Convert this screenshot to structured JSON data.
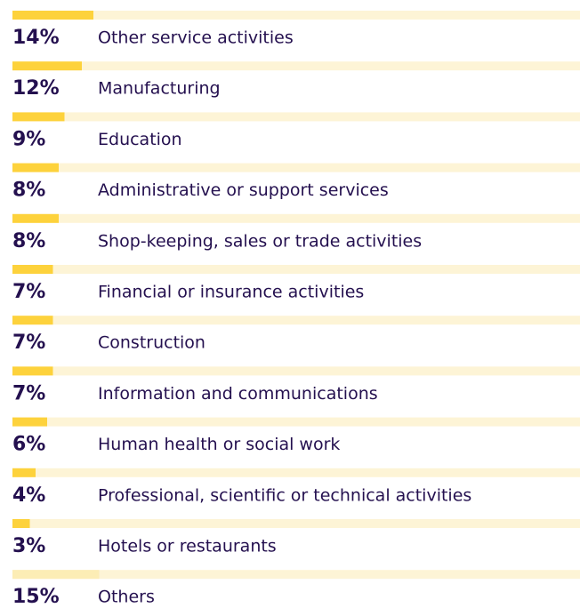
{
  "chart_data": {
    "type": "bar",
    "orientation": "horizontal",
    "categories": [
      "Other service activities",
      "Manufacturing",
      "Education",
      "Administrative or support services",
      "Shop-keeping, sales or trade activities",
      "Financial or insurance activities",
      "Construction",
      "Information and communications",
      "Human health or social work",
      "Professional, scientific or technical activities",
      "Hotels or restaurants",
      "Others"
    ],
    "values": [
      14,
      12,
      9,
      8,
      8,
      7,
      7,
      7,
      6,
      4,
      3,
      15
    ],
    "value_labels": [
      "14%",
      "12%",
      "9%",
      "8%",
      "8%",
      "7%",
      "7%",
      "7%",
      "6%",
      "4%",
      "3%",
      "15%"
    ],
    "colors": [
      "#fdd23c",
      "#fdd23c",
      "#fdd23c",
      "#fdd23c",
      "#fdd23c",
      "#fdd23c",
      "#fdd23c",
      "#fdd23c",
      "#fdd23c",
      "#fdd23c",
      "#fdd23c",
      "#fcedb5"
    ],
    "track_color": "#fdf4d6"
  }
}
